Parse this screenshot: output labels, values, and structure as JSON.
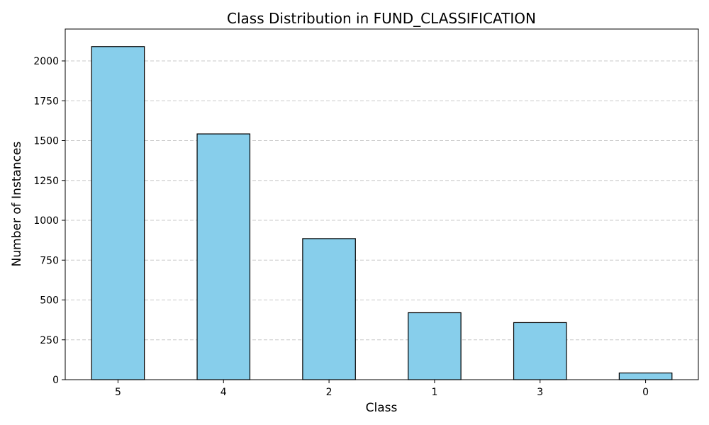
{
  "chart_data": {
    "type": "bar",
    "title": "Class Distribution in FUND_CLASSIFICATION",
    "xlabel": "Class",
    "ylabel": "Number of Instances",
    "categories": [
      "5",
      "4",
      "2",
      "1",
      "3",
      "0"
    ],
    "values": [
      2090,
      1542,
      885,
      420,
      358,
      42
    ],
    "ylim": [
      0,
      2200
    ],
    "yticks": [
      0,
      250,
      500,
      750,
      1000,
      1250,
      1500,
      1750,
      2000
    ],
    "ytick_labels": [
      "0",
      "250",
      "500",
      "750",
      "1000",
      "1250",
      "1500",
      "1750",
      "2000"
    ],
    "grid": "y-axis, dashed",
    "legend": "none",
    "bar_color": "#87ceeb",
    "bar_edge_color": "#000000"
  }
}
